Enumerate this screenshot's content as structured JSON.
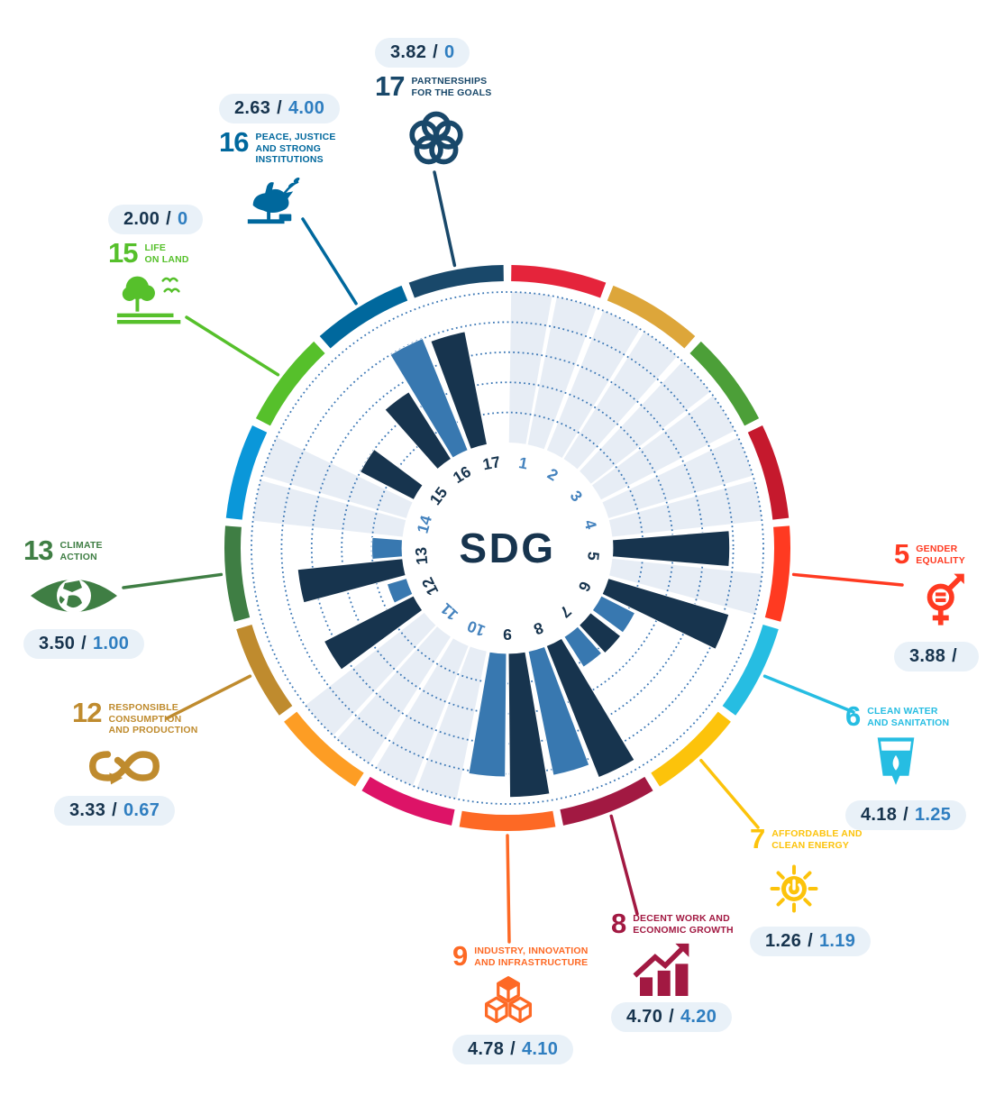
{
  "chart_data": {
    "type": "radial-bar",
    "center_label": "SDG",
    "value_separator": "/",
    "scale": {
      "min": 0,
      "max": 5,
      "rings": 5
    },
    "colors": {
      "bar_primary": "#17344E",
      "bar_secondary": "#3878B0",
      "empty_slot": "#E7EDF5",
      "grid_dots": "#3B77B5",
      "badge_bg": "#E9F1F8",
      "number_active": "#17344E",
      "number_inactive": "#4583BE"
    },
    "goals": [
      {
        "id": "1",
        "color": "#E5243B",
        "has_data": false
      },
      {
        "id": "2",
        "color": "#DDA63A",
        "has_data": false
      },
      {
        "id": "3",
        "color": "#4C9F38",
        "has_data": false
      },
      {
        "id": "4",
        "color": "#C5192D",
        "has_data": false
      },
      {
        "id": "5",
        "color": "#FF3A21",
        "has_data": true,
        "title_lines": [
          "GENDER",
          "EQUALITY"
        ],
        "icon": "gender-equality-icon",
        "value_primary": "3.88",
        "value_secondary": "",
        "primary": 3.88,
        "secondary": null
      },
      {
        "id": "6",
        "color": "#26BDE2",
        "has_data": true,
        "title_lines": [
          "CLEAN WATER",
          "AND SANITATION"
        ],
        "icon": "clean-water-icon",
        "value_primary": "4.18",
        "value_secondary": "1.25",
        "primary": 4.18,
        "secondary": 1.25
      },
      {
        "id": "7",
        "color": "#FCC30B",
        "has_data": true,
        "title_lines": [
          "AFFORDABLE AND",
          "CLEAN ENERGY"
        ],
        "icon": "clean-energy-icon",
        "value_primary": "1.26",
        "value_secondary": "1.19",
        "primary": 1.26,
        "secondary": 1.19
      },
      {
        "id": "8",
        "color": "#A21942",
        "has_data": true,
        "title_lines": [
          "DECENT WORK AND",
          "ECONOMIC GROWTH"
        ],
        "icon": "economic-growth-icon",
        "value_primary": "4.70",
        "value_secondary": "4.20",
        "primary": 4.7,
        "secondary": 4.2
      },
      {
        "id": "9",
        "color": "#FD6925",
        "has_data": true,
        "title_lines": [
          "INDUSTRY, INNOVATION",
          "AND INFRASTRUCTURE"
        ],
        "icon": "industry-innovation-icon",
        "value_primary": "4.78",
        "value_secondary": "4.10",
        "primary": 4.78,
        "secondary": 4.1
      },
      {
        "id": "10",
        "color": "#DD1367",
        "has_data": false
      },
      {
        "id": "11",
        "color": "#FD9D24",
        "has_data": false
      },
      {
        "id": "12",
        "color": "#BF8B2E",
        "has_data": true,
        "title_lines": [
          "RESPONSIBLE",
          "CONSUMPTION",
          "AND PRODUCTION"
        ],
        "icon": "responsible-consumption-icon",
        "value_primary": "3.33",
        "value_secondary": "0.67",
        "primary": 3.33,
        "secondary": 0.67
      },
      {
        "id": "13",
        "color": "#3F7E44",
        "has_data": true,
        "title_lines": [
          "CLIMATE",
          "ACTION"
        ],
        "icon": "climate-action-icon",
        "value_primary": "3.50",
        "value_secondary": "1.00",
        "primary": 3.5,
        "secondary": 1.0
      },
      {
        "id": "14",
        "color": "#0A97D9",
        "has_data": false
      },
      {
        "id": "15",
        "color": "#56C02B",
        "has_data": true,
        "title_lines": [
          "LIFE",
          "ON LAND"
        ],
        "icon": "life-on-land-icon",
        "value_primary": "2.00",
        "value_secondary": "0",
        "primary": 2.0,
        "secondary": 0
      },
      {
        "id": "16",
        "color": "#00689D",
        "has_data": true,
        "title_lines": [
          "PEACE, JUSTICE",
          "AND STRONG",
          "INSTITUTIONS"
        ],
        "icon": "peace-justice-icon",
        "value_primary": "2.63",
        "value_secondary": "4.00",
        "primary": 2.63,
        "secondary": 4.0
      },
      {
        "id": "17",
        "color": "#19486A",
        "has_data": true,
        "title_lines": [
          "PARTNERSHIPS",
          "FOR THE GOALS"
        ],
        "icon": "partnerships-icon",
        "value_primary": "3.82",
        "value_secondary": "0",
        "primary": 3.82,
        "secondary": 0
      }
    ]
  }
}
